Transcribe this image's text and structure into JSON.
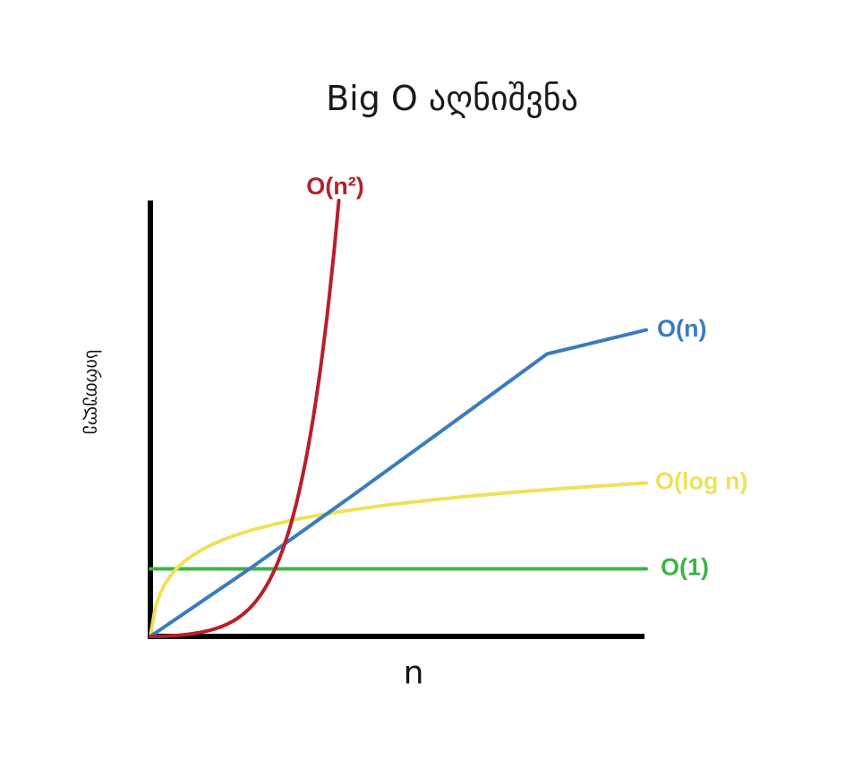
{
  "page": {
    "title": "Big O აღნიშვნა"
  },
  "chart_data": {
    "type": "line",
    "title": "Big O აღნიშვნა",
    "xlabel": "n",
    "ylabel": "სირთულე",
    "grid": false,
    "legend": "none",
    "xlim": [
      0,
      100
    ],
    "ylim": [
      0,
      100
    ],
    "series": [
      {
        "name": "O(n²)",
        "color": "#b81f2b",
        "kind": "quadratic",
        "values": [
          [
            0,
            0
          ],
          [
            10,
            2.2
          ],
          [
            20,
            14.3
          ],
          [
            25,
            25.8
          ],
          [
            30,
            41.4
          ],
          [
            35,
            64.3
          ],
          [
            37.5,
            86.1
          ],
          [
            38,
            100
          ]
        ]
      },
      {
        "name": "O(n)",
        "color": "#3a7bbf",
        "kind": "linear",
        "values": [
          [
            0,
            0
          ],
          [
            20,
            15.5
          ],
          [
            40,
            31.7
          ],
          [
            60,
            48.2
          ],
          [
            80,
            64.8
          ],
          [
            100,
            70.3
          ]
        ]
      },
      {
        "name": "O(log n)",
        "color": "#ede25a",
        "kind": "log",
        "values": [
          [
            0,
            0
          ],
          [
            5,
            12.6
          ],
          [
            20,
            23.5
          ],
          [
            40,
            29.9
          ],
          [
            60,
            32.6
          ],
          [
            80,
            34.2
          ],
          [
            100,
            35.2
          ]
        ]
      },
      {
        "name": "O(1)",
        "color": "#3db544",
        "kind": "constant",
        "values": [
          [
            0,
            15.5
          ],
          [
            100,
            15.5
          ]
        ]
      }
    ]
  }
}
